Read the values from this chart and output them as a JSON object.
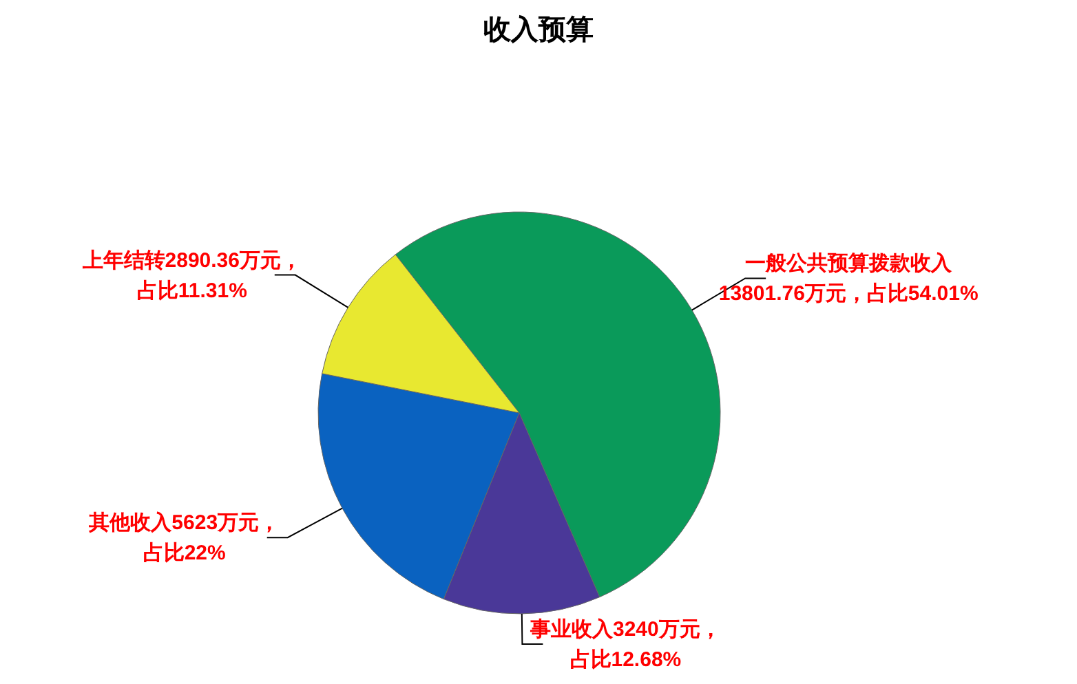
{
  "chart_data": {
    "type": "pie",
    "title": "收入预算",
    "categories": [
      "一般公共预算拨款收入",
      "事业收入",
      "其他收入",
      "上年结转"
    ],
    "values": [
      13801.76,
      3240,
      5623,
      2890.36
    ],
    "colors": [
      "#0a9a5a",
      "#4a3898",
      "#0a62c0",
      "#e8e830"
    ],
    "value_labels": [
      "13801.76万元，占比54.01%",
      "3240万元，占比12.68%",
      "5623万元，占比22%",
      "2890.36万元，占比11.31%"
    ],
    "legend": false
  }
}
